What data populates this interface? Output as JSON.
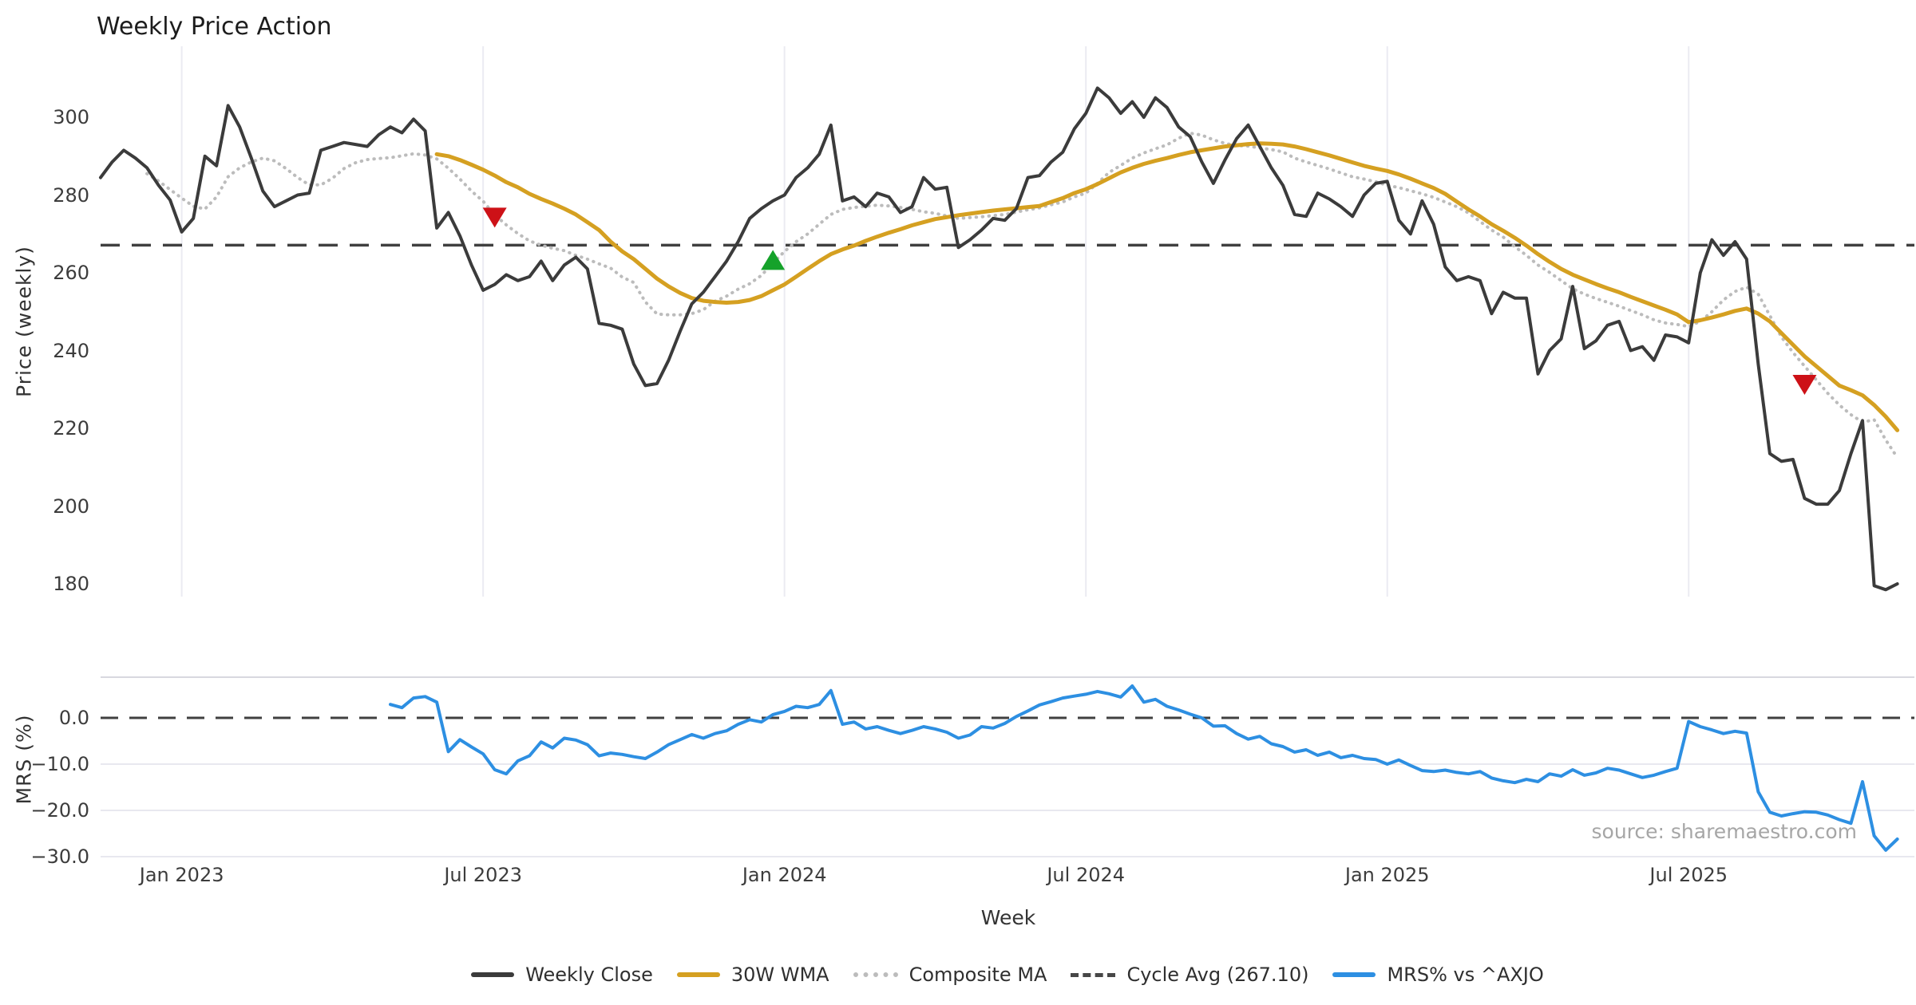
{
  "title": "Weekly Price Action",
  "x_label": "Week",
  "source": "source: sharemaestro.com",
  "cycle_avg_label": "Cycle Avg (267.10)",
  "colors": {
    "weekly_close": "#3b3b3b",
    "wma": "#d5a021",
    "composite": "#bcbcbc",
    "cycle": "#404040",
    "mrs": "#2d8fe2",
    "marker_up": "#15a22a",
    "marker_down": "#cd1117",
    "grid_vertical": "#ebebf2",
    "grid_horizontal": "#e8e8ef",
    "panel_top_line": "#d8d8df"
  },
  "price_panel": {
    "y_label": "Price (weekly)",
    "y_ticks": [
      300,
      280,
      260,
      240,
      220,
      200,
      180
    ]
  },
  "mrs_panel": {
    "y_label": "MRS (%)",
    "y_ticks": [
      {
        "label": "0.0",
        "v": 0
      },
      {
        "label": "−10.0",
        "v": -10
      },
      {
        "label": "−20.0",
        "v": -20
      },
      {
        "label": "−30.0",
        "v": -30
      }
    ]
  },
  "x_ticks": [
    {
      "label": "Jan 2023",
      "i": 7
    },
    {
      "label": "Jul 2023",
      "i": 33
    },
    {
      "label": "Jan 2024",
      "i": 59
    },
    {
      "label": "Jul 2024",
      "i": 85
    },
    {
      "label": "Jan 2025",
      "i": 111
    },
    {
      "label": "Jul 2025",
      "i": 137
    }
  ],
  "legend": [
    {
      "label": "Weekly Close",
      "type": "solid",
      "color_key": "weekly_close"
    },
    {
      "label": "30W WMA",
      "type": "solid",
      "color_key": "wma"
    },
    {
      "label": "Composite MA",
      "type": "dotted",
      "color_key": "composite"
    },
    {
      "label": "Cycle Avg (267.10)",
      "type": "dashed",
      "color_key": "cycle"
    },
    {
      "label": "MRS% vs ^AXJO",
      "type": "solid",
      "color_key": "mrs"
    }
  ],
  "chart_data": [
    {
      "type": "line",
      "panel": "price",
      "title": "Weekly Price Action",
      "xlabel": "Week",
      "ylabel": "Price (weekly)",
      "ylim": [
        172,
        312
      ],
      "x_unit": "weekly index, index 0 = mid-Nov 2022, ticks mark Jan/Jul",
      "grid": "vertical-only",
      "cycle_avg": 267.1,
      "series": [
        {
          "name": "Weekly Close",
          "start_index": 0,
          "values": [
            284.5,
            288.5,
            291.5,
            289.5,
            287,
            282.5,
            278.7,
            270.5,
            274,
            290,
            287.5,
            303,
            297.5,
            289.5,
            281,
            277,
            278.5,
            280,
            280.5,
            291.5,
            292.5,
            293.5,
            293,
            292.5,
            295.5,
            297.5,
            296,
            299.5,
            296.5,
            271.5,
            275.5,
            269.5,
            262,
            255.5,
            257,
            259.5,
            258,
            259,
            263,
            258,
            262,
            264,
            261,
            247,
            246.5,
            245.5,
            236.5,
            231,
            231.5,
            237.5,
            245,
            252,
            255,
            259,
            263,
            268,
            274,
            276.5,
            278.5,
            280,
            284.5,
            287,
            290.5,
            298,
            278.5,
            279.5,
            277,
            280.5,
            279.5,
            275.5,
            277,
            284.5,
            281.5,
            282,
            266.5,
            268.5,
            271,
            274,
            273.5,
            276.5,
            284.5,
            285,
            288.5,
            291,
            297,
            301,
            307.5,
            305,
            301,
            304,
            300,
            305,
            302.5,
            297.5,
            295,
            288.5,
            283,
            289,
            294.5,
            298,
            292.5,
            287,
            282.5,
            275,
            274.5,
            280.5,
            279,
            277,
            274.5,
            280,
            283,
            283.5,
            273.5,
            270,
            278.5,
            272.5,
            261.5,
            258,
            259,
            258,
            249.5,
            255,
            253.5,
            253.5,
            234,
            240,
            243,
            256.5,
            240.5,
            242.5,
            246.5,
            247.5,
            240,
            241,
            237.5,
            244,
            243.5,
            242,
            260,
            268.5,
            264.5,
            268,
            263.5,
            236.5,
            213.5,
            211.5,
            212,
            202,
            200.5,
            200.5,
            204,
            213.5,
            222,
            179.5,
            178.5,
            180
          ]
        },
        {
          "name": "30W WMA",
          "start_index": 29,
          "values": [
            290.5,
            290,
            289,
            287.8,
            286.5,
            285,
            283.3,
            282,
            280.3,
            279,
            277.8,
            276.5,
            275,
            273,
            271,
            268,
            265.5,
            263.5,
            261,
            258.5,
            256.5,
            254.8,
            253.5,
            252.8,
            252.5,
            252.3,
            252.5,
            253,
            254,
            255.5,
            257,
            259,
            261,
            263,
            264.8,
            266,
            267,
            268.2,
            269.3,
            270.3,
            271.2,
            272.2,
            273,
            273.8,
            274.3,
            274.8,
            275.2,
            275.6,
            276,
            276.3,
            276.6,
            276.9,
            277.2,
            278.2,
            279.2,
            280.5,
            281.5,
            282.8,
            284.3,
            285.8,
            287,
            288,
            288.8,
            289.5,
            290.3,
            291,
            291.5,
            292,
            292.5,
            292.8,
            293.1,
            293.3,
            293.2,
            293,
            292.5,
            291.8,
            291,
            290.2,
            289.3,
            288.4,
            287.5,
            286.8,
            286.2,
            285.3,
            284.2,
            283,
            281.8,
            280.3,
            278.3,
            276.3,
            274.5,
            272.5,
            270.8,
            269,
            267,
            264.8,
            262.8,
            261,
            259.5,
            258.3,
            257.1,
            256,
            255,
            253.8,
            252.7,
            251.6,
            250.5,
            249.3,
            247.3,
            247.8,
            248.5,
            249.3,
            250.2,
            250.8,
            249.5,
            247.5,
            244.5,
            241.5,
            238.5,
            236,
            233.5,
            231,
            229.8,
            228.5,
            226,
            223,
            219.5
          ]
        },
        {
          "name": "Composite MA",
          "start_index": 4,
          "values": [
            285.5,
            283.6,
            281.4,
            279.2,
            277.1,
            276.4,
            279.5,
            284.7,
            287,
            288.5,
            289.5,
            288.8,
            286.8,
            284.5,
            282.6,
            282.6,
            284.3,
            286.8,
            288.3,
            289.1,
            289.4,
            289.6,
            290.1,
            290.6,
            290.3,
            289.3,
            286.9,
            284.1,
            281,
            278.4,
            274.9,
            272.3,
            270.1,
            268.2,
            267.1,
            266.3,
            265.7,
            264.5,
            263.5,
            262.3,
            261.2,
            258.9,
            257.5,
            252.5,
            249.4,
            249.2,
            249.2,
            249.5,
            250.5,
            252.7,
            254,
            255.8,
            257.2,
            259.3,
            262.5,
            265.5,
            268,
            270,
            272.5,
            275,
            276.3,
            276.8,
            277.1,
            277.4,
            277.2,
            276.8,
            276.3,
            275.7,
            275.3,
            274.6,
            274,
            274.2,
            274.4,
            274.7,
            275,
            275.6,
            276.2,
            276.7,
            277.5,
            278.2,
            279.5,
            280.5,
            283,
            285.8,
            287.6,
            289.5,
            290.8,
            291.9,
            292.9,
            294.6,
            295.9,
            295.4,
            294.2,
            293.3,
            292.7,
            292.6,
            292.1,
            291.7,
            291.1,
            289.5,
            288.5,
            287.6,
            286.7,
            285.7,
            284.7,
            284.1,
            283.4,
            282.5,
            281.9,
            281.1,
            280.3,
            279.4,
            278.2,
            277,
            275.4,
            273.2,
            271,
            269.2,
            266.7,
            264.5,
            262,
            260.1,
            258,
            255.9,
            254.5,
            253.4,
            252.4,
            251.4,
            250.3,
            249.2,
            247.9,
            247.1,
            246.7,
            246.2,
            247.5,
            250,
            253,
            255.2,
            256.3,
            254.5,
            249,
            243.5,
            239.5,
            236,
            232.5,
            229,
            226,
            223.5,
            221.6,
            222.2,
            217,
            212.5
          ]
        },
        {
          "name": "Cycle Avg (267.10)",
          "constant": 267.1,
          "style": "dashed"
        }
      ],
      "annotations": [
        {
          "shape": "triangle-down",
          "i": 34,
          "value": 274.5,
          "color_key": "marker_down"
        },
        {
          "shape": "triangle-up",
          "i": 58,
          "value": 263,
          "color_key": "marker_up"
        },
        {
          "shape": "triangle-down",
          "i": 147,
          "value": 231.5,
          "color_key": "marker_down"
        }
      ]
    },
    {
      "type": "line",
      "panel": "mrs",
      "ylabel": "MRS (%)",
      "ylim": [
        -31,
        9
      ],
      "grid": "horizontal-only",
      "series": [
        {
          "name": "MRS% vs ^AXJO",
          "start_index": 25,
          "values": [
            2.9,
            2.2,
            4.3,
            4.6,
            3.4,
            -7.3,
            -4.7,
            -6.3,
            -7.8,
            -11.2,
            -12.1,
            -9.3,
            -8.2,
            -5.2,
            -6.5,
            -4.4,
            -4.8,
            -5.8,
            -8.2,
            -7.6,
            -7.9,
            -8.4,
            -8.8,
            -7.4,
            -5.8,
            -4.7,
            -3.6,
            -4.4,
            -3.4,
            -2.8,
            -1.4,
            -0.4,
            -0.9,
            0.7,
            1.4,
            2.5,
            2.2,
            2.9,
            5.9,
            -1.4,
            -0.9,
            -2.4,
            -1.9,
            -2.7,
            -3.4,
            -2.7,
            -1.9,
            -2.4,
            -3.1,
            -4.4,
            -3.7,
            -1.9,
            -2.2,
            -1.2,
            0.3,
            1.5,
            2.8,
            3.5,
            4.3,
            4.7,
            5.1,
            5.7,
            5.2,
            4.5,
            6.9,
            3.4,
            4,
            2.5,
            1.7,
            0.8,
            0,
            -1.8,
            -1.7,
            -3.4,
            -4.6,
            -4,
            -5.6,
            -6.2,
            -7.4,
            -6.9,
            -8.1,
            -7.4,
            -8.6,
            -8.1,
            -8.8,
            -9,
            -10,
            -9.1,
            -10.3,
            -11.4,
            -11.6,
            -11.3,
            -11.8,
            -12.1,
            -11.6,
            -13,
            -13.6,
            -14,
            -13.3,
            -13.8,
            -12.1,
            -12.6,
            -11.2,
            -12.4,
            -11.9,
            -10.9,
            -11.3,
            -12.1,
            -12.9,
            -12.4,
            -11.6,
            -10.9,
            -0.8,
            -1.9,
            -2.6,
            -3.4,
            -2.9,
            -3.3,
            -16,
            -20.4,
            -21.2,
            -20.7,
            -20.3,
            -20.4,
            -21,
            -22,
            -22.8,
            -13.8,
            -25.5,
            -28.6,
            -26.2
          ]
        },
        {
          "name": "Zero line",
          "constant": 0,
          "style": "dashed"
        }
      ]
    }
  ]
}
